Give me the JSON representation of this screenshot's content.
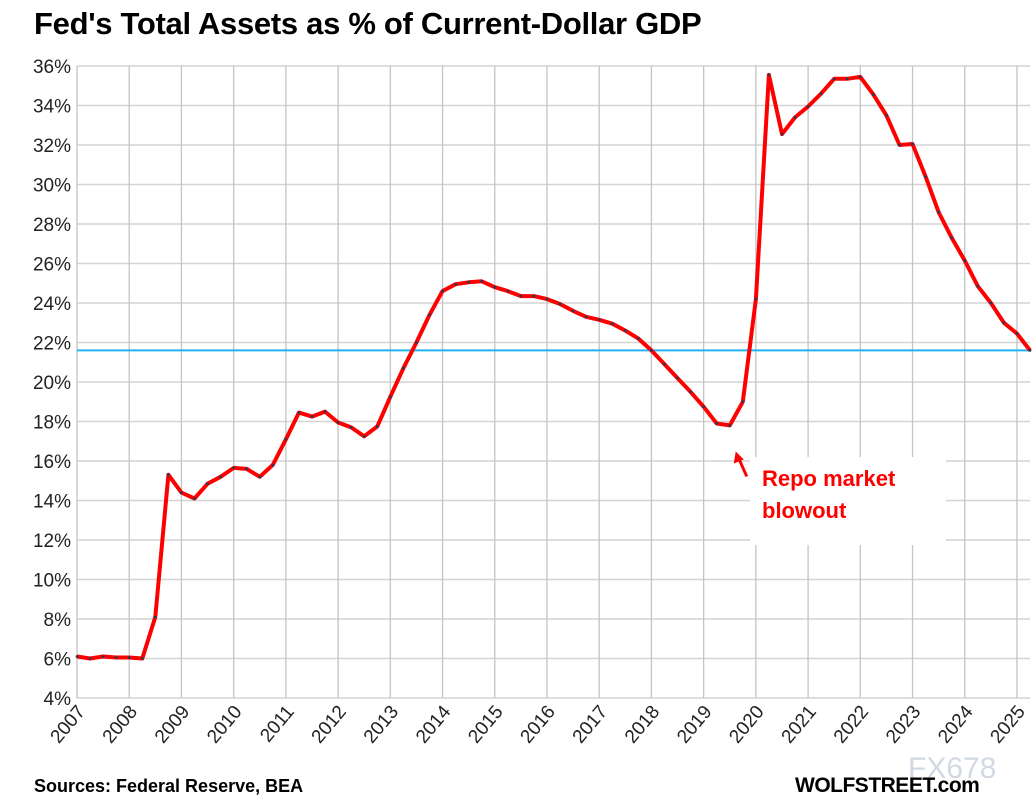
{
  "chart_data": {
    "type": "line",
    "title": "Fed's Total Assets as % of Current-Dollar GDP",
    "xlabel": "",
    "ylabel": "",
    "x_start": "2007-Q1",
    "frequency": "quarterly",
    "x_tick_labels": [
      "2007",
      "2008",
      "2009",
      "2010",
      "2011",
      "2012",
      "2013",
      "2014",
      "2015",
      "2016",
      "2017",
      "2018",
      "2019",
      "2020",
      "2021",
      "2022",
      "2023",
      "2024",
      "2025"
    ],
    "y_tick_labels": [
      "4%",
      "6%",
      "8%",
      "10%",
      "12%",
      "14%",
      "16%",
      "18%",
      "20%",
      "22%",
      "24%",
      "26%",
      "28%",
      "30%",
      "32%",
      "34%",
      "36%"
    ],
    "ylim": [
      4,
      36
    ],
    "grid": true,
    "series": [
      {
        "color": "#ff0000",
        "values": [
          6.1,
          6.0,
          6.1,
          6.05,
          6.05,
          6.0,
          8.1,
          15.3,
          14.4,
          14.1,
          14.85,
          15.2,
          15.65,
          15.6,
          15.2,
          15.8,
          17.1,
          18.45,
          18.25,
          18.5,
          17.95,
          17.7,
          17.25,
          17.75,
          19.25,
          20.7,
          22.0,
          23.4,
          24.6,
          24.95,
          25.05,
          25.1,
          24.8,
          24.6,
          24.35,
          24.35,
          24.2,
          23.95,
          23.6,
          23.3,
          23.15,
          22.95,
          22.6,
          22.2,
          21.6,
          20.9,
          20.2,
          19.5,
          18.75,
          17.9,
          17.8,
          19.0,
          24.2,
          35.55,
          32.55,
          33.4,
          33.95,
          34.6,
          35.35,
          35.35,
          35.45,
          34.55,
          33.5,
          32.0,
          32.05,
          30.4,
          28.6,
          27.3,
          26.15,
          24.85,
          24.0,
          23.0,
          22.45,
          21.6
        ]
      }
    ],
    "reference_line": {
      "value": 21.6,
      "color": "#1fb4ef"
    },
    "annotation": {
      "text_line1": "Repo market",
      "text_line2": "blowout",
      "color": "#ff0000",
      "points_to": "2019-Q3"
    }
  },
  "footer": {
    "sources": "Sources: Federal Reserve, BEA",
    "brand": "WOLFSTREET.com",
    "watermark": "FX678"
  }
}
